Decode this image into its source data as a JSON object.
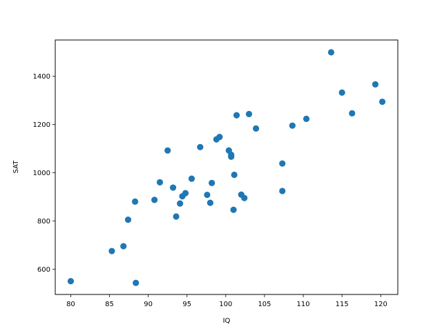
{
  "chart_data": {
    "type": "scatter",
    "title": "",
    "xlabel": "IQ",
    "ylabel": "SAT",
    "xlim": [
      78,
      122.2
    ],
    "ylim": [
      495,
      1550
    ],
    "xticks": [
      80,
      85,
      90,
      95,
      100,
      105,
      110,
      115,
      120
    ],
    "yticks": [
      600,
      800,
      1000,
      1200,
      1400
    ],
    "grid": false,
    "legend": "none",
    "marker_color": "#1f77b4",
    "points": [
      {
        "x": 80.0,
        "y": 550
      },
      {
        "x": 85.3,
        "y": 675
      },
      {
        "x": 86.8,
        "y": 695
      },
      {
        "x": 87.4,
        "y": 805
      },
      {
        "x": 88.3,
        "y": 880
      },
      {
        "x": 88.4,
        "y": 543
      },
      {
        "x": 90.8,
        "y": 887
      },
      {
        "x": 91.5,
        "y": 960
      },
      {
        "x": 92.5,
        "y": 1092
      },
      {
        "x": 93.2,
        "y": 938
      },
      {
        "x": 93.6,
        "y": 818
      },
      {
        "x": 94.1,
        "y": 872
      },
      {
        "x": 94.4,
        "y": 902
      },
      {
        "x": 94.8,
        "y": 915
      },
      {
        "x": 95.6,
        "y": 975
      },
      {
        "x": 96.7,
        "y": 1106
      },
      {
        "x": 97.6,
        "y": 908
      },
      {
        "x": 98.0,
        "y": 875
      },
      {
        "x": 98.2,
        "y": 957
      },
      {
        "x": 98.8,
        "y": 1138
      },
      {
        "x": 99.2,
        "y": 1148
      },
      {
        "x": 100.4,
        "y": 1092
      },
      {
        "x": 100.7,
        "y": 1066
      },
      {
        "x": 100.7,
        "y": 1074
      },
      {
        "x": 101.0,
        "y": 846
      },
      {
        "x": 101.1,
        "y": 991
      },
      {
        "x": 101.4,
        "y": 1238
      },
      {
        "x": 102.0,
        "y": 909
      },
      {
        "x": 102.4,
        "y": 895
      },
      {
        "x": 103.0,
        "y": 1243
      },
      {
        "x": 103.9,
        "y": 1183
      },
      {
        "x": 107.3,
        "y": 1038
      },
      {
        "x": 107.3,
        "y": 924
      },
      {
        "x": 108.6,
        "y": 1195
      },
      {
        "x": 110.4,
        "y": 1223
      },
      {
        "x": 113.6,
        "y": 1499
      },
      {
        "x": 115.0,
        "y": 1332
      },
      {
        "x": 116.3,
        "y": 1246
      },
      {
        "x": 119.3,
        "y": 1366
      },
      {
        "x": 120.2,
        "y": 1294
      }
    ]
  }
}
